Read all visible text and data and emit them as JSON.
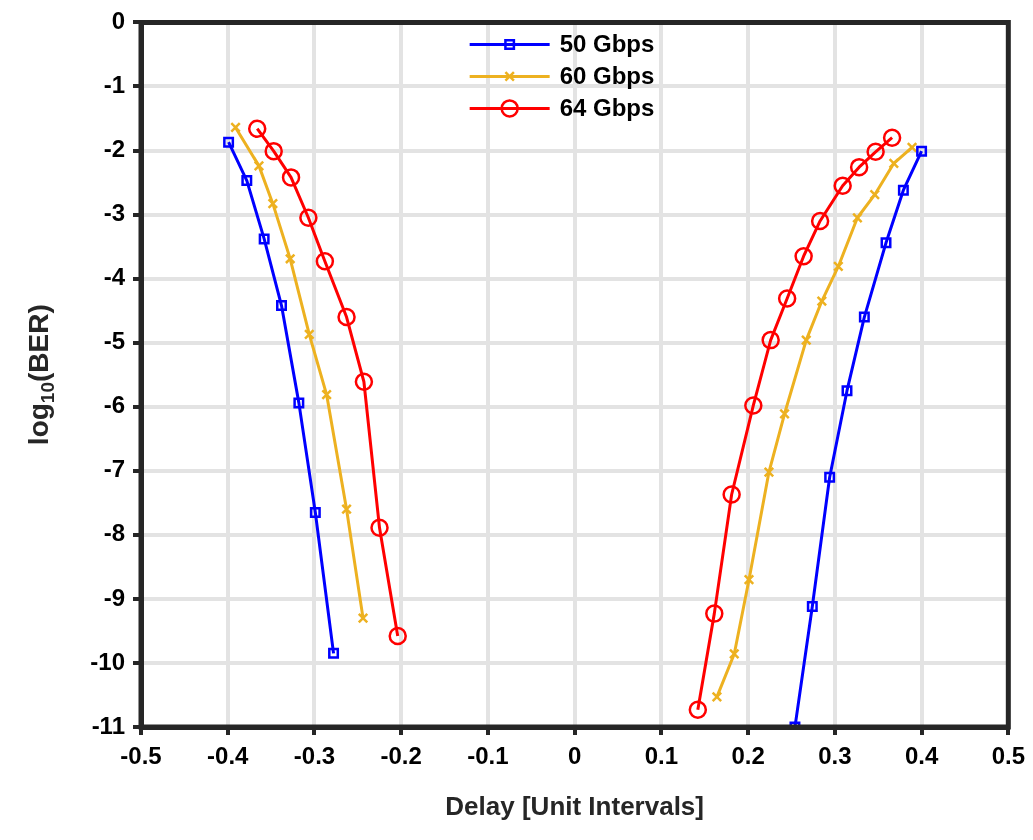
{
  "chart_data": {
    "type": "line",
    "xlabel": "Delay [Unit Intervals]",
    "ylabel": "log$_{10}$(BER)",
    "xlim": [
      -0.5,
      0.5
    ],
    "xticks": [
      -0.5,
      -0.4,
      -0.3,
      -0.2,
      -0.1,
      0,
      0.1,
      0.2,
      0.3,
      0.4,
      0.5
    ],
    "ylim": [
      -11,
      0
    ],
    "yticks": [
      0,
      -1,
      -2,
      -3,
      -4,
      -5,
      -6,
      -7,
      -8,
      -9,
      -10,
      -11
    ],
    "grid": true,
    "legend": "top",
    "line_style": "solid",
    "series": [
      {
        "name": "50 Gbps",
        "color": "#0000ff",
        "marker": "square",
        "x": [
          -0.399,
          -0.378,
          -0.358,
          -0.338,
          -0.318,
          -0.299,
          -0.278,
          0,
          0.254,
          0.274,
          0.294,
          0.314,
          0.334,
          0.359,
          0.379,
          0.4
        ],
        "values": [
          -1.87,
          -2.47,
          -3.38,
          -4.42,
          -5.94,
          -7.65,
          -9.85,
          null,
          -11,
          -9.12,
          -7.1,
          -5.75,
          -4.6,
          -3.44,
          -2.62,
          -2.01
        ]
      },
      {
        "name": "60 Gbps",
        "color": "#edb120",
        "marker": "cross",
        "x": [
          -0.391,
          -0.364,
          -0.348,
          -0.328,
          -0.306,
          -0.286,
          -0.263,
          -0.244,
          0,
          0.164,
          0.184,
          0.201,
          0.224,
          0.242,
          0.267,
          0.285,
          0.304,
          0.326,
          0.346,
          0.368,
          0.389
        ],
        "values": [
          -1.64,
          -2.24,
          -2.83,
          -3.69,
          -4.87,
          -5.81,
          -7.6,
          -9.3,
          null,
          -10.53,
          -9.86,
          -8.7,
          -7.02,
          -6.11,
          -4.96,
          -4.35,
          -3.81,
          -3.05,
          -2.69,
          -2.2,
          -1.95
        ]
      },
      {
        "name": "64 Gbps",
        "color": "#ff0000",
        "marker": "circle",
        "x": [
          -0.366,
          -0.347,
          -0.327,
          -0.307,
          -0.288,
          -0.263,
          -0.243,
          -0.225,
          -0.204,
          0,
          0.142,
          0.161,
          0.181,
          0.206,
          0.226,
          0.245,
          0.264,
          0.283,
          0.309,
          0.328,
          0.347,
          0.366
        ],
        "values": [
          -1.66,
          -2.01,
          -2.42,
          -3.05,
          -3.73,
          -4.6,
          -5.61,
          -7.89,
          -9.58,
          null,
          -10.73,
          -9.23,
          -7.37,
          -5.98,
          -4.96,
          -4.31,
          -3.65,
          -3.1,
          -2.55,
          -2.26,
          -2.02,
          -1.8
        ]
      }
    ]
  }
}
